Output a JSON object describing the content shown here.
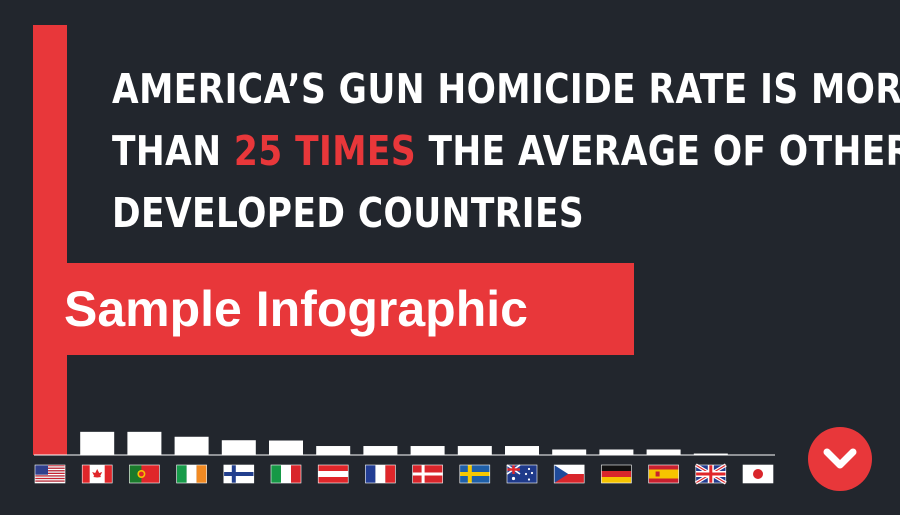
{
  "headline": {
    "line1": "AMERICA’S GUN HOMICIDE RATE IS MORE",
    "line2_pre": "THAN ",
    "line2_highlight": "25 TIMES",
    "line2_post": " THE AVERAGE OF OTHER",
    "line3": "DEVELOPED COUNTRIES"
  },
  "watermark": "Sample Infographic",
  "colors": {
    "accent": "#e8373a",
    "background": "#22262d",
    "bar": "#ffffff"
  },
  "chart_data": {
    "type": "bar",
    "categories": [
      "United States",
      "Canada",
      "Portugal",
      "Ireland",
      "Finland",
      "Italy",
      "Austria",
      "France",
      "Denmark",
      "Sweden",
      "Australia",
      "Czech Republic",
      "Germany",
      "Spain",
      "United Kingdom",
      "Japan"
    ],
    "values": [
      29.7,
      1.6,
      1.6,
      1.26,
      1.02,
      1.0,
      0.62,
      0.62,
      0.62,
      0.62,
      0.62,
      0.38,
      0.38,
      0.38,
      0.1,
      0.0
    ],
    "ylim": [
      0,
      29.7
    ],
    "title": "",
    "xlabel": "",
    "ylabel": "",
    "flags": [
      "us-flag-icon",
      "ca-flag-icon",
      "pt-flag-icon",
      "ie-flag-icon",
      "fi-flag-icon",
      "it-flag-icon",
      "at-flag-icon",
      "fr-flag-icon",
      "dk-flag-icon",
      "se-flag-icon",
      "au-flag-icon",
      "cz-flag-icon",
      "de-flag-icon",
      "es-flag-icon",
      "gb-flag-icon",
      "jp-flag-icon"
    ]
  },
  "scroll_button": {
    "icon": "chevron-down-icon"
  }
}
